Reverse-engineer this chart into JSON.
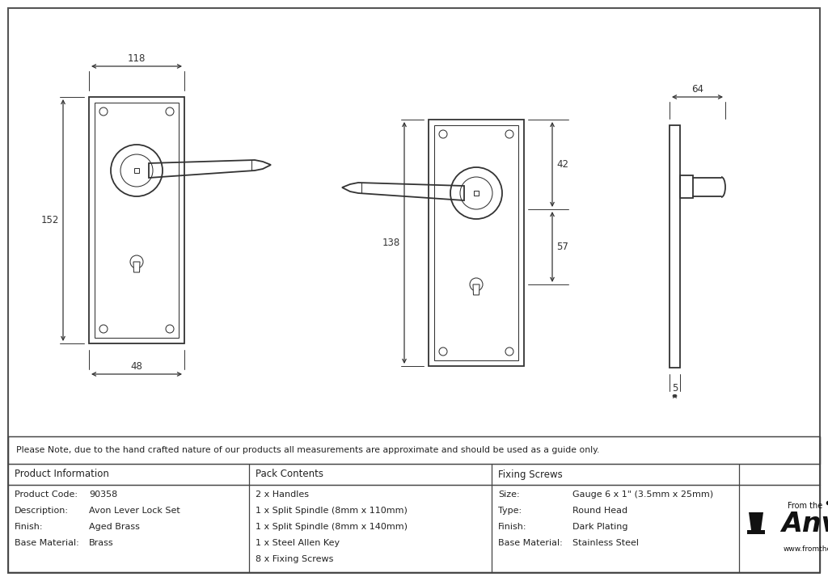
{
  "bg_color": "#ffffff",
  "line_color": "#333333",
  "dim_color": "#333333",
  "text_color": "#222222",
  "note": "Please Note, due to the hand crafted nature of our products all measurements are approximate and should be used as a guide only.",
  "product_info": {
    "header": "Product Information",
    "rows": [
      [
        "Product Code:",
        "90358"
      ],
      [
        "Description:",
        "Avon Lever Lock Set"
      ],
      [
        "Finish:",
        "Aged Brass"
      ],
      [
        "Base Material:",
        "Brass"
      ]
    ]
  },
  "pack_contents": {
    "header": "Pack Contents",
    "items": [
      "2 x Handles",
      "1 x Split Spindle (8mm x 110mm)",
      "1 x Split Spindle (8mm x 140mm)",
      "1 x Steel Allen Key",
      "8 x Fixing Screws"
    ]
  },
  "fixing_screws": {
    "header": "Fixing Screws",
    "rows": [
      [
        "Size:",
        "Gauge 6 x 1\" (3.5mm x 25mm)"
      ],
      [
        "Type:",
        "Round Head"
      ],
      [
        "Finish:",
        "Dark Plating"
      ],
      [
        "Base Material:",
        "Stainless Steel"
      ]
    ]
  }
}
